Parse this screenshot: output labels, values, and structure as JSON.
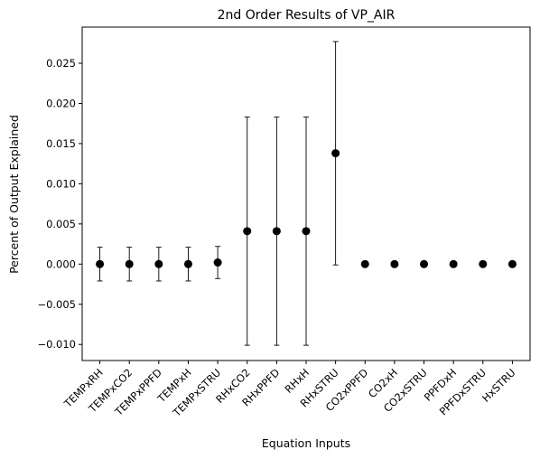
{
  "chart_data": {
    "type": "scatter",
    "title": "2nd Order Results of VP_AIR",
    "xlabel": "Equation Inputs",
    "ylabel": "Percent of Output Explained",
    "ylim": [
      -0.012,
      0.0295
    ],
    "yticks": [
      -0.01,
      -0.005,
      0.0,
      0.005,
      0.01,
      0.015,
      0.02,
      0.025
    ],
    "ytick_labels": [
      "−0.010",
      "−0.005",
      "0.000",
      "0.005",
      "0.010",
      "0.015",
      "0.020",
      "0.025"
    ],
    "grid": false,
    "categories": [
      "TEMPxRH",
      "TEMPxCO2",
      "TEMPxPPFD",
      "TEMPxH",
      "TEMPxSTRU",
      "RHxCO2",
      "RHxPPFD",
      "RHxH",
      "RHxSTRU",
      "CO2xPPFD",
      "CO2xH",
      "CO2xSTRU",
      "PPFDxH",
      "PPFDxSTRU",
      "HxSTRU"
    ],
    "values": [
      0.0,
      0.0,
      0.0,
      0.0,
      0.0002,
      0.0041,
      0.0041,
      0.0041,
      0.0138,
      0.0,
      0.0,
      0.0,
      0.0,
      0.0,
      0.0
    ],
    "errors": [
      0.0021,
      0.0021,
      0.0021,
      0.0021,
      0.002,
      0.0142,
      0.0142,
      0.0142,
      0.0139,
      0.0,
      0.0,
      0.0,
      0.0,
      0.0,
      0.0
    ],
    "marker_color": "#000000"
  }
}
